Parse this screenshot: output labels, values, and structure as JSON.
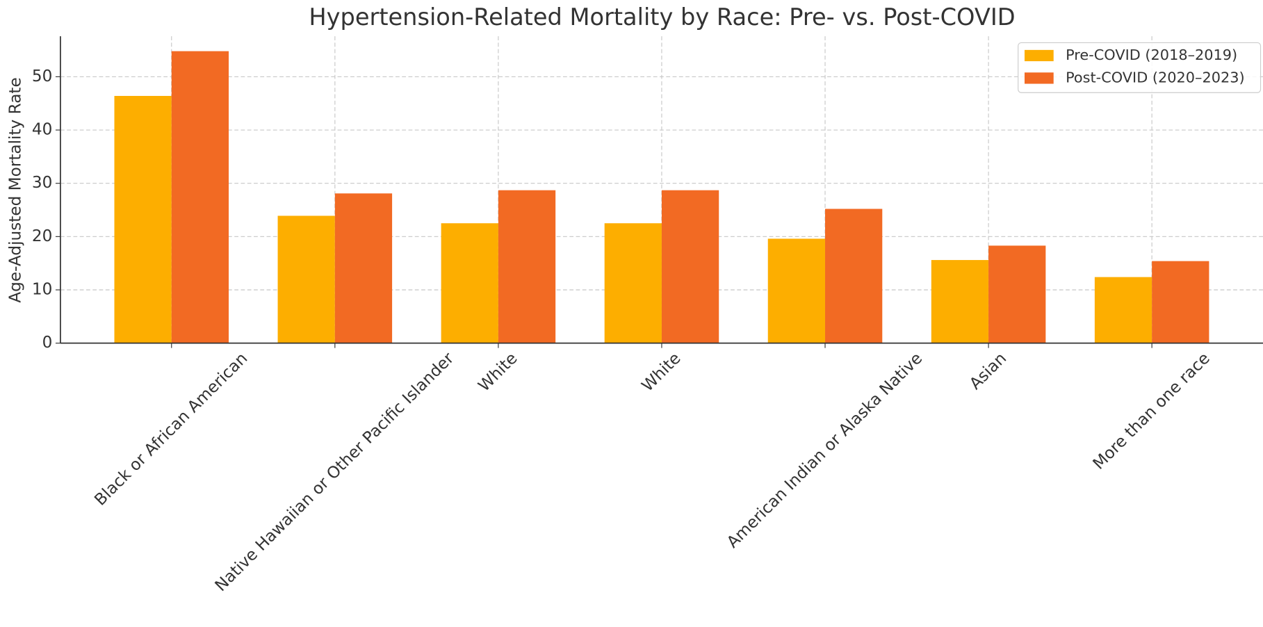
{
  "chart_data": {
    "type": "bar",
    "title": "Hypertension-Related Mortality by Race: Pre- vs. Post-COVID",
    "y_label": "Age-Adjusted Mortality Rate",
    "categories": [
      "Black or African American",
      "Native Hawaiian or Other Pacific Islander",
      "White",
      "White",
      "American Indian or Alaska Native",
      "Asian",
      "More than one race"
    ],
    "series": [
      {
        "name": "Pre-COVID (2018–2019)",
        "color": "#fdae00",
        "values": [
          46.4,
          23.9,
          22.5,
          22.5,
          19.6,
          15.6,
          12.4
        ]
      },
      {
        "name": "Post-COVID (2020–2023)",
        "color": "#f26a23",
        "values": [
          54.8,
          28.1,
          28.7,
          28.7,
          25.2,
          18.3,
          15.4
        ]
      }
    ],
    "ylim": [
      0,
      57.6
    ],
    "yticks": [
      0,
      10,
      20,
      30,
      40,
      50
    ],
    "grid": true,
    "legend": "upper-right"
  }
}
